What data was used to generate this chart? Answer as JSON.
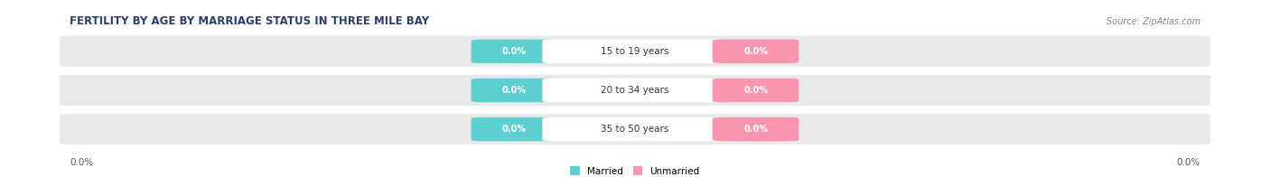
{
  "title": "FERTILITY BY AGE BY MARRIAGE STATUS IN THREE MILE BAY",
  "source": "Source: ZipAtlas.com",
  "categories": [
    "15 to 19 years",
    "20 to 34 years",
    "35 to 50 years"
  ],
  "married_values": [
    "0.0%",
    "0.0%",
    "0.0%"
  ],
  "unmarried_values": [
    "0.0%",
    "0.0%",
    "0.0%"
  ],
  "married_color": "#5ecfcf",
  "unmarried_color": "#f896b0",
  "bar_bg_color": "#e9e9e9",
  "title_color": "#2c3e6b",
  "source_color": "#888888",
  "axis_label_left": "0.0%",
  "axis_label_right": "0.0%",
  "figsize": [
    14.06,
    1.96
  ],
  "dpi": 100,
  "legend_married": "Married",
  "legend_unmarried": "Unmarried"
}
